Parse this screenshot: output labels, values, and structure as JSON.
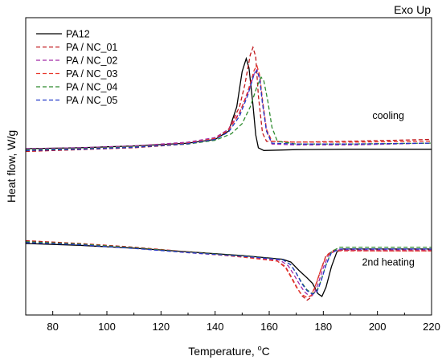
{
  "chart_data": {
    "type": "line",
    "title": "",
    "corner_label": "Exo Up",
    "xlabel_main": "Temperature, ",
    "xlabel_sup": "o",
    "xlabel_unit": "C",
    "ylabel": "Heat flow, W/g",
    "xlim": [
      70,
      220
    ],
    "x_ticks": [
      80,
      100,
      120,
      140,
      160,
      180,
      200,
      220
    ],
    "y_ticks_shown": false,
    "grid": false,
    "legend_position": "top-left",
    "annotations": [
      {
        "text": "cooling",
        "x": 204,
        "y": 12.15
      },
      {
        "text": "2nd heating",
        "x": 204,
        "y": 4.25
      }
    ],
    "series": [
      {
        "name": "PA12",
        "color": "#000000",
        "dash": "solid",
        "cooling": [
          [
            70,
            10.55
          ],
          [
            90,
            10.6
          ],
          [
            110,
            10.7
          ],
          [
            130,
            10.85
          ],
          [
            140,
            11.05
          ],
          [
            145,
            11.5
          ],
          [
            148,
            12.8
          ],
          [
            150,
            14.7
          ],
          [
            151.5,
            15.4
          ],
          [
            152.5,
            14.9
          ],
          [
            154,
            12.9
          ],
          [
            155,
            11.3
          ],
          [
            156,
            10.6
          ],
          [
            158,
            10.45
          ],
          [
            170,
            10.5
          ],
          [
            190,
            10.52
          ],
          [
            220,
            10.52
          ]
        ],
        "heating": [
          [
            70,
            5.45
          ],
          [
            90,
            5.35
          ],
          [
            110,
            5.2
          ],
          [
            130,
            5.0
          ],
          [
            150,
            4.8
          ],
          [
            165,
            4.6
          ],
          [
            168,
            4.45
          ],
          [
            171,
            4.0
          ],
          [
            174,
            3.6
          ],
          [
            176,
            3.3
          ],
          [
            178,
            2.75
          ],
          [
            179.5,
            2.6
          ],
          [
            181,
            3.1
          ],
          [
            183,
            4.2
          ],
          [
            185,
            5.0
          ],
          [
            187,
            5.15
          ],
          [
            200,
            5.15
          ],
          [
            220,
            5.15
          ]
        ]
      },
      {
        "name": "PA / NC_01",
        "color": "#c0181c",
        "dash": "dashed",
        "cooling": [
          [
            70,
            10.4
          ],
          [
            90,
            10.5
          ],
          [
            110,
            10.6
          ],
          [
            130,
            10.8
          ],
          [
            140,
            11.1
          ],
          [
            145,
            11.6
          ],
          [
            149,
            12.8
          ],
          [
            151,
            14.0
          ],
          [
            153,
            15.6
          ],
          [
            154,
            16.0
          ],
          [
            155,
            15.5
          ],
          [
            156,
            13.4
          ],
          [
            157.5,
            11.4
          ],
          [
            159,
            10.95
          ],
          [
            170,
            10.9
          ],
          [
            190,
            10.95
          ],
          [
            220,
            11.05
          ]
        ],
        "heating": [
          [
            70,
            5.6
          ],
          [
            90,
            5.45
          ],
          [
            110,
            5.25
          ],
          [
            130,
            5.0
          ],
          [
            150,
            4.75
          ],
          [
            163,
            4.5
          ],
          [
            166,
            4.2
          ],
          [
            168,
            3.7
          ],
          [
            170,
            3.15
          ],
          [
            172,
            2.65
          ],
          [
            174,
            2.4
          ],
          [
            175.5,
            2.55
          ],
          [
            177,
            3.1
          ],
          [
            179,
            4.0
          ],
          [
            181,
            4.8
          ],
          [
            184,
            5.1
          ],
          [
            200,
            5.05
          ],
          [
            220,
            5.05
          ]
        ]
      },
      {
        "name": "PA / NC_02",
        "color": "#a22aa8",
        "dash": "dashed",
        "cooling": [
          [
            70,
            10.55
          ],
          [
            90,
            10.6
          ],
          [
            110,
            10.7
          ],
          [
            130,
            10.9
          ],
          [
            140,
            11.15
          ],
          [
            145,
            11.6
          ],
          [
            149,
            12.5
          ],
          [
            152,
            13.5
          ],
          [
            154.5,
            14.6
          ],
          [
            155.5,
            14.8
          ],
          [
            156.5,
            14.3
          ],
          [
            157.5,
            13.0
          ],
          [
            159,
            11.5
          ],
          [
            161,
            10.8
          ],
          [
            170,
            10.75
          ],
          [
            190,
            10.75
          ],
          [
            220,
            10.85
          ]
        ],
        "heating": [
          [
            70,
            5.5
          ],
          [
            90,
            5.4
          ],
          [
            110,
            5.2
          ],
          [
            130,
            4.95
          ],
          [
            150,
            4.75
          ],
          [
            164,
            4.55
          ],
          [
            167,
            4.25
          ],
          [
            169,
            3.8
          ],
          [
            171,
            3.3
          ],
          [
            173,
            2.85
          ],
          [
            175,
            2.6
          ],
          [
            176.5,
            2.7
          ],
          [
            178,
            3.25
          ],
          [
            180,
            4.15
          ],
          [
            182,
            4.85
          ],
          [
            185,
            5.1
          ],
          [
            200,
            5.1
          ],
          [
            220,
            5.1
          ]
        ]
      },
      {
        "name": "PA / NC_03",
        "color": "#e8382c",
        "dash": "dashed",
        "cooling": [
          [
            70,
            10.5
          ],
          [
            90,
            10.55
          ],
          [
            110,
            10.65
          ],
          [
            130,
            10.85
          ],
          [
            140,
            11.1
          ],
          [
            145,
            11.55
          ],
          [
            149,
            12.45
          ],
          [
            152,
            13.6
          ],
          [
            154.5,
            14.8
          ],
          [
            155.5,
            15.0
          ],
          [
            156.5,
            14.5
          ],
          [
            157.5,
            13.2
          ],
          [
            159,
            11.6
          ],
          [
            161,
            10.95
          ],
          [
            170,
            10.9
          ],
          [
            190,
            10.9
          ],
          [
            220,
            10.95
          ]
        ],
        "heating": [
          [
            70,
            5.55
          ],
          [
            90,
            5.42
          ],
          [
            110,
            5.22
          ],
          [
            130,
            4.98
          ],
          [
            150,
            4.72
          ],
          [
            163,
            4.5
          ],
          [
            166,
            4.15
          ],
          [
            168,
            3.65
          ],
          [
            170,
            3.1
          ],
          [
            172,
            2.7
          ],
          [
            174,
            2.55
          ],
          [
            175.5,
            2.65
          ],
          [
            177,
            3.15
          ],
          [
            179,
            4.0
          ],
          [
            181,
            4.75
          ],
          [
            184,
            5.05
          ],
          [
            200,
            5.05
          ],
          [
            220,
            5.05
          ]
        ]
      },
      {
        "name": "PA / NC_04",
        "color": "#2e8b2e",
        "dash": "dashed",
        "cooling": [
          [
            70,
            10.5
          ],
          [
            90,
            10.55
          ],
          [
            110,
            10.65
          ],
          [
            130,
            10.8
          ],
          [
            140,
            11.0
          ],
          [
            146,
            11.35
          ],
          [
            150,
            11.9
          ],
          [
            153,
            12.8
          ],
          [
            155.5,
            13.9
          ],
          [
            157,
            14.4
          ],
          [
            158,
            14.2
          ],
          [
            159.5,
            13.1
          ],
          [
            161,
            11.7
          ],
          [
            163,
            10.95
          ],
          [
            170,
            10.8
          ],
          [
            190,
            10.8
          ],
          [
            220,
            10.85
          ]
        ],
        "heating": [
          [
            70,
            5.55
          ],
          [
            90,
            5.42
          ],
          [
            110,
            5.22
          ],
          [
            130,
            4.98
          ],
          [
            150,
            4.78
          ],
          [
            165,
            4.58
          ],
          [
            168,
            4.3
          ],
          [
            170,
            3.85
          ],
          [
            172,
            3.35
          ],
          [
            174,
            2.95
          ],
          [
            176,
            2.75
          ],
          [
            177.5,
            2.85
          ],
          [
            179,
            3.4
          ],
          [
            181,
            4.3
          ],
          [
            183,
            5.0
          ],
          [
            186,
            5.25
          ],
          [
            200,
            5.25
          ],
          [
            220,
            5.25
          ]
        ]
      },
      {
        "name": "PA / NC_05",
        "color": "#2238c8",
        "dash": "dashed",
        "cooling": [
          [
            70,
            10.45
          ],
          [
            90,
            10.52
          ],
          [
            110,
            10.62
          ],
          [
            130,
            10.82
          ],
          [
            140,
            11.05
          ],
          [
            145,
            11.45
          ],
          [
            149,
            12.3
          ],
          [
            152,
            13.4
          ],
          [
            154.5,
            14.6
          ],
          [
            155.5,
            14.75
          ],
          [
            156.5,
            14.3
          ],
          [
            157.5,
            13.0
          ],
          [
            159,
            11.5
          ],
          [
            161,
            10.85
          ],
          [
            170,
            10.8
          ],
          [
            190,
            10.8
          ],
          [
            220,
            10.85
          ]
        ],
        "heating": [
          [
            70,
            5.5
          ],
          [
            90,
            5.38
          ],
          [
            110,
            5.18
          ],
          [
            130,
            4.96
          ],
          [
            150,
            4.76
          ],
          [
            165,
            4.58
          ],
          [
            168,
            4.3
          ],
          [
            170,
            3.85
          ],
          [
            172,
            3.3
          ],
          [
            174,
            2.9
          ],
          [
            176,
            2.72
          ],
          [
            177.5,
            2.8
          ],
          [
            179,
            3.35
          ],
          [
            181,
            4.3
          ],
          [
            183,
            4.95
          ],
          [
            186,
            5.15
          ],
          [
            200,
            5.15
          ],
          [
            220,
            5.15
          ]
        ]
      }
    ]
  }
}
